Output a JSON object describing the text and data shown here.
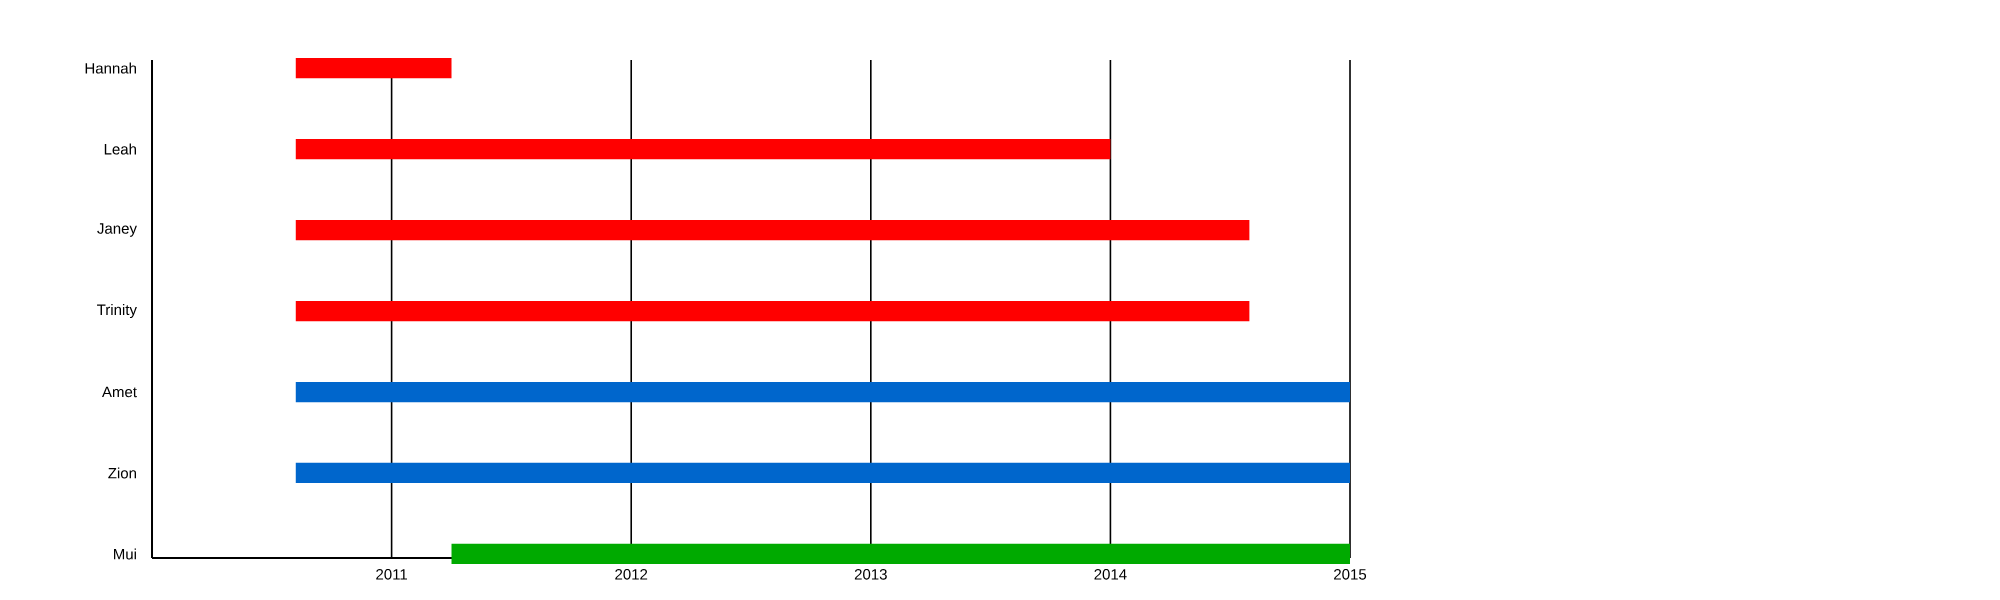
{
  "chart_data": {
    "type": "bar",
    "orientation": "horizontal",
    "categories": [
      "Hannah",
      "Leah",
      "Janey",
      "Trinity",
      "Amet",
      "Zion",
      "Mui"
    ],
    "base": [
      2010.6,
      2010.6,
      2010.6,
      2010.6,
      2010.6,
      2010.6,
      2011.25
    ],
    "values": [
      0.65,
      3.4,
      3.98,
      3.98,
      4.4,
      4.4,
      3.75
    ],
    "colors": [
      "#ff0000",
      "#ff0000",
      "#ff0000",
      "#ff0000",
      "#0066cc",
      "#0066cc",
      "#00aa00"
    ],
    "xlim": [
      2010,
      2015
    ],
    "xticks": [
      2011,
      2012,
      2013,
      2014,
      2015
    ],
    "grid": "x"
  }
}
